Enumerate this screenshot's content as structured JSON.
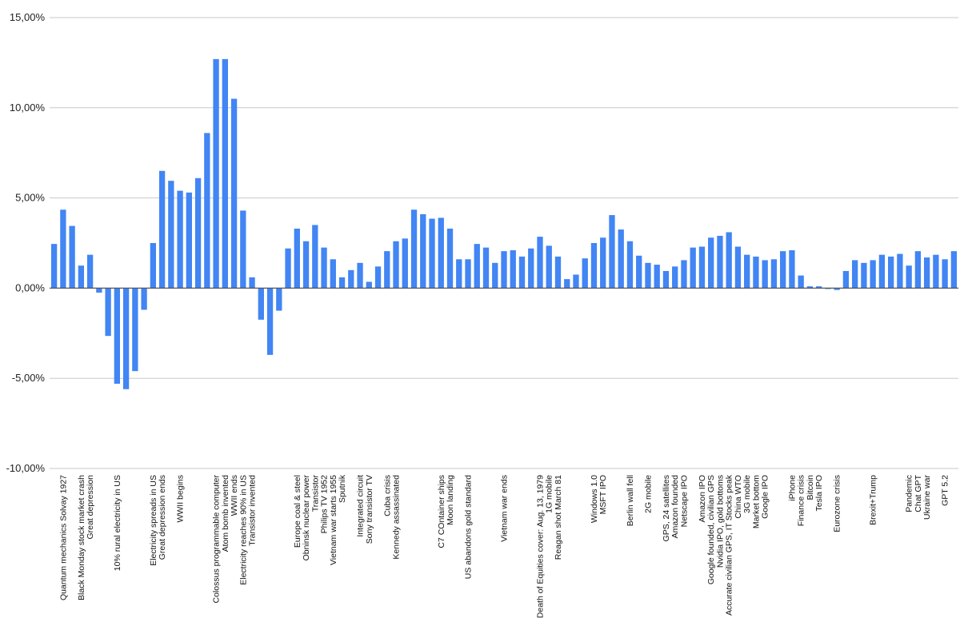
{
  "chart_data": {
    "type": "bar",
    "bar_color": "#4285f4",
    "grid_color": "#c8c8c8",
    "zero_line_color": "#555555",
    "ylim": [
      -10,
      15
    ],
    "yticks": [
      15,
      10,
      5,
      0,
      -5,
      -10
    ],
    "ytick_labels": [
      "15,00%",
      "10,00%",
      "5,00%",
      "0,00%",
      "-5,00%",
      "-10,00%"
    ],
    "grid": true,
    "title": "",
    "xlabel": "",
    "ylabel": "",
    "values": [
      2.45,
      4.35,
      3.45,
      1.25,
      1.85,
      -0.25,
      -2.65,
      -5.3,
      -5.6,
      -4.6,
      -1.2,
      2.5,
      6.5,
      5.95,
      5.4,
      5.3,
      6.1,
      8.6,
      12.7,
      12.7,
      10.5,
      4.3,
      0.6,
      -1.75,
      -3.7,
      -1.25,
      2.2,
      3.3,
      2.6,
      3.5,
      2.25,
      1.6,
      0.6,
      1.0,
      1.4,
      0.35,
      1.2,
      2.05,
      2.6,
      2.75,
      4.35,
      4.1,
      3.85,
      3.9,
      3.3,
      1.6,
      1.6,
      2.45,
      2.25,
      1.4,
      2.05,
      2.1,
      1.75,
      2.2,
      2.85,
      2.35,
      1.75,
      0.5,
      0.75,
      1.65,
      2.5,
      2.8,
      4.05,
      3.25,
      2.6,
      1.8,
      1.4,
      1.3,
      0.95,
      1.2,
      1.55,
      2.25,
      2.3,
      2.8,
      2.9,
      3.1,
      2.3,
      1.85,
      1.75,
      1.55,
      1.6,
      2.05,
      2.1,
      0.7,
      0.1,
      0.1,
      -0.05,
      -0.1,
      0.95,
      1.55,
      1.4,
      1.55,
      1.85,
      1.75,
      1.9,
      1.25,
      2.05,
      1.7,
      1.85,
      1.6,
      2.05
    ],
    "labeled_categories": [
      {
        "index": 1,
        "label": "Quantum mechanics Solvay 1927"
      },
      {
        "index": 3,
        "label": "Black Monday stock market crash"
      },
      {
        "index": 4,
        "label": "Great depression"
      },
      {
        "index": 7,
        "label": "10% rural electricity in US"
      },
      {
        "index": 11,
        "label": "Electricity spreads in US"
      },
      {
        "index": 12,
        "label": "Great depression ends"
      },
      {
        "index": 14,
        "label": "WWII begins"
      },
      {
        "index": 18,
        "label": "Colossus programmable computer"
      },
      {
        "index": 19,
        "label": "Atom bomb invented"
      },
      {
        "index": 20,
        "label": "WWII ends"
      },
      {
        "index": 21,
        "label": "Electricity reaches 90% in US"
      },
      {
        "index": 22,
        "label": "Transistor invented"
      },
      {
        "index": 27,
        "label": "Europe coal & steel"
      },
      {
        "index": 28,
        "label": "Obninsk nuclear power"
      },
      {
        "index": 29,
        "label": "Transistor"
      },
      {
        "index": 30,
        "label": "Philips TV 1952"
      },
      {
        "index": 31,
        "label": "Vietnam war starts 1955"
      },
      {
        "index": 32,
        "label": "Sputnik"
      },
      {
        "index": 34,
        "label": "Integrated circuit"
      },
      {
        "index": 35,
        "label": "Sony transistor TV"
      },
      {
        "index": 37,
        "label": "Cuba crisis"
      },
      {
        "index": 38,
        "label": "Kennedy assassinated"
      },
      {
        "index": 43,
        "label": "C7 COntainer ships"
      },
      {
        "index": 44,
        "label": "Moon landing"
      },
      {
        "index": 46,
        "label": "US abandons gold standard"
      },
      {
        "index": 50,
        "label": "Vietnam war ends"
      },
      {
        "index": 54,
        "label": "Death of Equities cover: Aug. 13, 1979"
      },
      {
        "index": 55,
        "label": "1G mobile"
      },
      {
        "index": 56,
        "label": "Reagan shot March 81"
      },
      {
        "index": 60,
        "label": "Windows 1.0"
      },
      {
        "index": 61,
        "label": "MSFT IPO"
      },
      {
        "index": 64,
        "label": "Berlin wall fell"
      },
      {
        "index": 66,
        "label": "2G mobile"
      },
      {
        "index": 68,
        "label": "GPS, 24 satellites"
      },
      {
        "index": 69,
        "label": "Amazon founded"
      },
      {
        "index": 70,
        "label": "Netscape IPO"
      },
      {
        "index": 72,
        "label": "Amazon IPO"
      },
      {
        "index": 73,
        "label": "Google founded, civilian GPS"
      },
      {
        "index": 74,
        "label": "Nvidia IPO, gold bottoms"
      },
      {
        "index": 75,
        "label": "Accurate civilian GPS, IT Stocks peak"
      },
      {
        "index": 76,
        "label": "China WTO"
      },
      {
        "index": 77,
        "label": "3G mobile"
      },
      {
        "index": 78,
        "label": "Market bottom"
      },
      {
        "index": 79,
        "label": "Google IPO"
      },
      {
        "index": 82,
        "label": "iPhone"
      },
      {
        "index": 83,
        "label": "Finance crisis"
      },
      {
        "index": 84,
        "label": "Bitcoin"
      },
      {
        "index": 85,
        "label": "Tesla IPO"
      },
      {
        "index": 87,
        "label": "Eurozone crisis"
      },
      {
        "index": 91,
        "label": "Brexit+Trump"
      },
      {
        "index": 95,
        "label": "Pandemic"
      },
      {
        "index": 96,
        "label": "Chat GPT"
      },
      {
        "index": 97,
        "label": "Ukraine war"
      },
      {
        "index": 99,
        "label": "GPT 5.2"
      }
    ]
  }
}
